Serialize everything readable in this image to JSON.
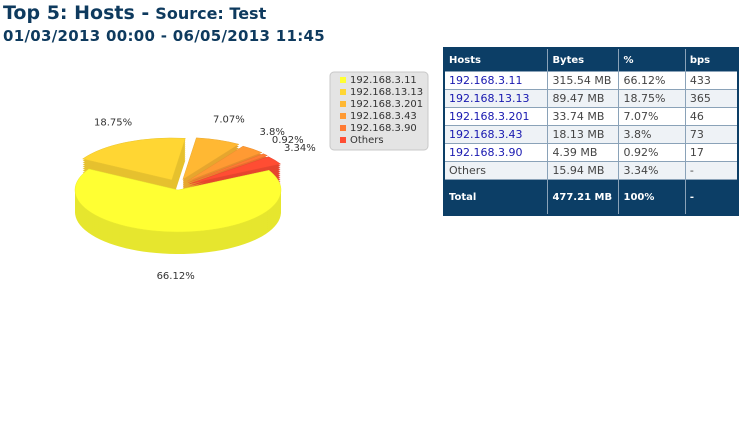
{
  "header": {
    "title": "Top 5: Hosts -",
    "source": "Source: Test",
    "date_range": "01/03/2013 00:00 - 06/05/2013 11:45"
  },
  "chart_data": {
    "type": "pie",
    "categories": [
      "192.168.3.11",
      "192.168.13.13",
      "192.168.3.201",
      "192.168.3.43",
      "192.168.3.90",
      "Others"
    ],
    "values": [
      66.12,
      18.75,
      7.07,
      3.8,
      0.92,
      3.34
    ],
    "value_labels": [
      "66.12%",
      "18.75%",
      "7.07%",
      "3.8%",
      "0.92%",
      "3.34%"
    ],
    "colors": [
      "#ffff33",
      "#ffd633",
      "#ffb833",
      "#ff9a33",
      "#ff7a33",
      "#ff4d33"
    ]
  },
  "table": {
    "columns": [
      "Hosts",
      "Bytes",
      "%",
      "bps"
    ],
    "rows": [
      [
        "192.168.3.11",
        "315.54 MB",
        "66.12%",
        "433"
      ],
      [
        "192.168.13.13",
        "89.47 MB",
        "18.75%",
        "365"
      ],
      [
        "192.168.3.201",
        "33.74 MB",
        "7.07%",
        "46"
      ],
      [
        "192.168.3.43",
        "18.13 MB",
        "3.8%",
        "73"
      ],
      [
        "192.168.3.90",
        "4.39 MB",
        "0.92%",
        "17"
      ],
      [
        "Others",
        "15.94 MB",
        "3.34%",
        "-"
      ]
    ],
    "total": [
      "Total",
      "477.21 MB",
      "100%",
      "-"
    ]
  }
}
